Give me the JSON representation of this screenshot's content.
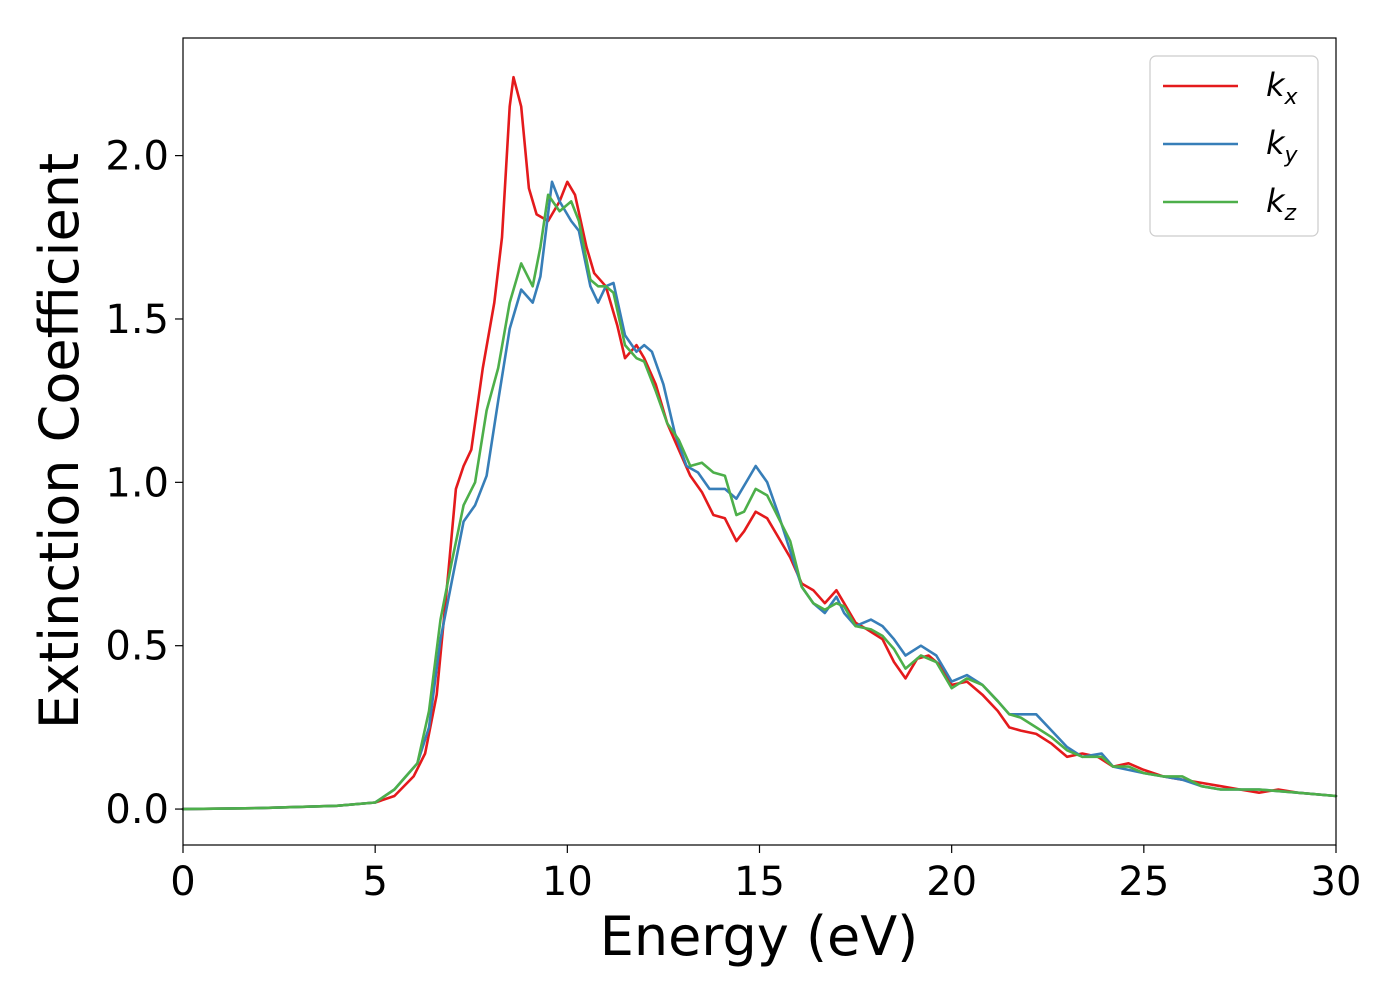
{
  "chart_data": {
    "type": "line",
    "xlabel": "Energy (eV)",
    "ylabel": "Extinction Coefficient",
    "xlim": [
      0,
      30
    ],
    "ylim": [
      -0.11,
      2.36
    ],
    "x_ticks": [
      "0",
      "5",
      "10",
      "15",
      "20",
      "25",
      "30"
    ],
    "y_ticks": [
      "0.0",
      "0.5",
      "1.0",
      "1.5",
      "2.0"
    ],
    "grid": false,
    "legend_position": "top-right",
    "series": [
      {
        "name": "k",
        "subscript": "x",
        "color": "#e41a1c",
        "points": [
          [
            0,
            0
          ],
          [
            2,
            0.003
          ],
          [
            4,
            0.01
          ],
          [
            5,
            0.02
          ],
          [
            5.5,
            0.04
          ],
          [
            6,
            0.1
          ],
          [
            6.3,
            0.17
          ],
          [
            6.6,
            0.35
          ],
          [
            6.9,
            0.72
          ],
          [
            7.1,
            0.98
          ],
          [
            7.3,
            1.05
          ],
          [
            7.5,
            1.1
          ],
          [
            7.8,
            1.35
          ],
          [
            8.1,
            1.55
          ],
          [
            8.3,
            1.75
          ],
          [
            8.5,
            2.15
          ],
          [
            8.6,
            2.24
          ],
          [
            8.8,
            2.15
          ],
          [
            9.0,
            1.9
          ],
          [
            9.2,
            1.82
          ],
          [
            9.5,
            1.8
          ],
          [
            9.8,
            1.86
          ],
          [
            10.0,
            1.92
          ],
          [
            10.2,
            1.88
          ],
          [
            10.5,
            1.72
          ],
          [
            10.7,
            1.64
          ],
          [
            11.0,
            1.6
          ],
          [
            11.3,
            1.48
          ],
          [
            11.5,
            1.38
          ],
          [
            11.8,
            1.42
          ],
          [
            12.0,
            1.38
          ],
          [
            12.3,
            1.3
          ],
          [
            12.6,
            1.18
          ],
          [
            12.9,
            1.1
          ],
          [
            13.2,
            1.02
          ],
          [
            13.5,
            0.97
          ],
          [
            13.8,
            0.9
          ],
          [
            14.1,
            0.89
          ],
          [
            14.4,
            0.82
          ],
          [
            14.6,
            0.85
          ],
          [
            14.9,
            0.91
          ],
          [
            15.2,
            0.89
          ],
          [
            15.5,
            0.83
          ],
          [
            15.8,
            0.77
          ],
          [
            16.1,
            0.69
          ],
          [
            16.4,
            0.67
          ],
          [
            16.7,
            0.63
          ],
          [
            17.0,
            0.67
          ],
          [
            17.2,
            0.63
          ],
          [
            17.5,
            0.57
          ],
          [
            17.8,
            0.55
          ],
          [
            18.2,
            0.52
          ],
          [
            18.5,
            0.45
          ],
          [
            18.8,
            0.4
          ],
          [
            19.1,
            0.46
          ],
          [
            19.4,
            0.47
          ],
          [
            19.7,
            0.44
          ],
          [
            20.0,
            0.38
          ],
          [
            20.4,
            0.39
          ],
          [
            20.8,
            0.35
          ],
          [
            21.2,
            0.3
          ],
          [
            21.5,
            0.25
          ],
          [
            21.8,
            0.24
          ],
          [
            22.2,
            0.23
          ],
          [
            22.6,
            0.2
          ],
          [
            23.0,
            0.16
          ],
          [
            23.4,
            0.17
          ],
          [
            23.8,
            0.16
          ],
          [
            24.2,
            0.13
          ],
          [
            24.6,
            0.14
          ],
          [
            25.0,
            0.12
          ],
          [
            25.5,
            0.1
          ],
          [
            26.0,
            0.09
          ],
          [
            26.5,
            0.08
          ],
          [
            27.0,
            0.07
          ],
          [
            27.5,
            0.06
          ],
          [
            28.0,
            0.05
          ],
          [
            28.5,
            0.06
          ],
          [
            29.0,
            0.05
          ],
          [
            30.0,
            0.04
          ]
        ]
      },
      {
        "name": "k",
        "subscript": "y",
        "color": "#377eb8",
        "points": [
          [
            0,
            0
          ],
          [
            2,
            0.003
          ],
          [
            4,
            0.01
          ],
          [
            5,
            0.02
          ],
          [
            5.5,
            0.06
          ],
          [
            5.8,
            0.1
          ],
          [
            6.1,
            0.14
          ],
          [
            6.4,
            0.25
          ],
          [
            6.7,
            0.52
          ],
          [
            7.0,
            0.7
          ],
          [
            7.3,
            0.88
          ],
          [
            7.6,
            0.93
          ],
          [
            7.9,
            1.02
          ],
          [
            8.2,
            1.25
          ],
          [
            8.5,
            1.47
          ],
          [
            8.8,
            1.59
          ],
          [
            9.1,
            1.55
          ],
          [
            9.3,
            1.63
          ],
          [
            9.6,
            1.92
          ],
          [
            9.8,
            1.86
          ],
          [
            10.1,
            1.8
          ],
          [
            10.3,
            1.77
          ],
          [
            10.6,
            1.6
          ],
          [
            10.8,
            1.55
          ],
          [
            11.0,
            1.6
          ],
          [
            11.2,
            1.61
          ],
          [
            11.5,
            1.45
          ],
          [
            11.8,
            1.4
          ],
          [
            12.0,
            1.42
          ],
          [
            12.2,
            1.4
          ],
          [
            12.5,
            1.3
          ],
          [
            12.8,
            1.15
          ],
          [
            13.1,
            1.05
          ],
          [
            13.4,
            1.03
          ],
          [
            13.7,
            0.98
          ],
          [
            14.1,
            0.98
          ],
          [
            14.4,
            0.95
          ],
          [
            14.7,
            1.01
          ],
          [
            14.9,
            1.05
          ],
          [
            15.2,
            1.0
          ],
          [
            15.5,
            0.9
          ],
          [
            15.8,
            0.79
          ],
          [
            16.1,
            0.68
          ],
          [
            16.4,
            0.63
          ],
          [
            16.7,
            0.6
          ],
          [
            17.0,
            0.65
          ],
          [
            17.2,
            0.6
          ],
          [
            17.5,
            0.56
          ],
          [
            17.9,
            0.58
          ],
          [
            18.2,
            0.56
          ],
          [
            18.5,
            0.52
          ],
          [
            18.8,
            0.47
          ],
          [
            19.2,
            0.5
          ],
          [
            19.6,
            0.47
          ],
          [
            20.0,
            0.39
          ],
          [
            20.4,
            0.41
          ],
          [
            20.8,
            0.38
          ],
          [
            21.2,
            0.33
          ],
          [
            21.5,
            0.29
          ],
          [
            21.8,
            0.29
          ],
          [
            22.2,
            0.29
          ],
          [
            22.6,
            0.24
          ],
          [
            23.0,
            0.19
          ],
          [
            23.4,
            0.16
          ],
          [
            23.9,
            0.17
          ],
          [
            24.2,
            0.13
          ],
          [
            24.6,
            0.12
          ],
          [
            25.0,
            0.11
          ],
          [
            25.5,
            0.1
          ],
          [
            26.0,
            0.09
          ],
          [
            26.5,
            0.07
          ],
          [
            27.0,
            0.06
          ],
          [
            27.5,
            0.06
          ],
          [
            28.0,
            0.06
          ],
          [
            29.0,
            0.05
          ],
          [
            30.0,
            0.04
          ]
        ]
      },
      {
        "name": "k",
        "subscript": "z",
        "color": "#4daf4a",
        "points": [
          [
            0,
            0
          ],
          [
            2,
            0.003
          ],
          [
            4,
            0.01
          ],
          [
            5,
            0.02
          ],
          [
            5.5,
            0.06
          ],
          [
            5.8,
            0.1
          ],
          [
            6.1,
            0.14
          ],
          [
            6.4,
            0.3
          ],
          [
            6.7,
            0.58
          ],
          [
            7.0,
            0.76
          ],
          [
            7.3,
            0.93
          ],
          [
            7.6,
            1.0
          ],
          [
            7.9,
            1.22
          ],
          [
            8.2,
            1.35
          ],
          [
            8.5,
            1.55
          ],
          [
            8.8,
            1.67
          ],
          [
            9.1,
            1.6
          ],
          [
            9.3,
            1.72
          ],
          [
            9.5,
            1.88
          ],
          [
            9.8,
            1.83
          ],
          [
            10.1,
            1.86
          ],
          [
            10.3,
            1.8
          ],
          [
            10.6,
            1.62
          ],
          [
            10.8,
            1.6
          ],
          [
            11.0,
            1.6
          ],
          [
            11.2,
            1.58
          ],
          [
            11.5,
            1.42
          ],
          [
            11.8,
            1.38
          ],
          [
            12.0,
            1.37
          ],
          [
            12.3,
            1.28
          ],
          [
            12.6,
            1.18
          ],
          [
            12.9,
            1.13
          ],
          [
            13.2,
            1.05
          ],
          [
            13.5,
            1.06
          ],
          [
            13.8,
            1.03
          ],
          [
            14.1,
            1.02
          ],
          [
            14.4,
            0.9
          ],
          [
            14.6,
            0.91
          ],
          [
            14.9,
            0.98
          ],
          [
            15.2,
            0.96
          ],
          [
            15.5,
            0.89
          ],
          [
            15.8,
            0.82
          ],
          [
            16.1,
            0.68
          ],
          [
            16.4,
            0.63
          ],
          [
            16.7,
            0.61
          ],
          [
            17.0,
            0.63
          ],
          [
            17.2,
            0.62
          ],
          [
            17.5,
            0.56
          ],
          [
            17.9,
            0.55
          ],
          [
            18.2,
            0.53
          ],
          [
            18.5,
            0.49
          ],
          [
            18.8,
            0.43
          ],
          [
            19.2,
            0.47
          ],
          [
            19.6,
            0.45
          ],
          [
            20.0,
            0.37
          ],
          [
            20.4,
            0.4
          ],
          [
            20.8,
            0.38
          ],
          [
            21.2,
            0.33
          ],
          [
            21.5,
            0.29
          ],
          [
            21.8,
            0.28
          ],
          [
            22.2,
            0.25
          ],
          [
            22.6,
            0.22
          ],
          [
            23.0,
            0.18
          ],
          [
            23.4,
            0.16
          ],
          [
            23.9,
            0.16
          ],
          [
            24.2,
            0.13
          ],
          [
            24.6,
            0.13
          ],
          [
            25.0,
            0.11
          ],
          [
            25.5,
            0.1
          ],
          [
            26.0,
            0.1
          ],
          [
            26.5,
            0.07
          ],
          [
            27.0,
            0.06
          ],
          [
            27.5,
            0.06
          ],
          [
            28.0,
            0.06
          ],
          [
            29.0,
            0.05
          ],
          [
            30.0,
            0.04
          ]
        ]
      }
    ]
  }
}
